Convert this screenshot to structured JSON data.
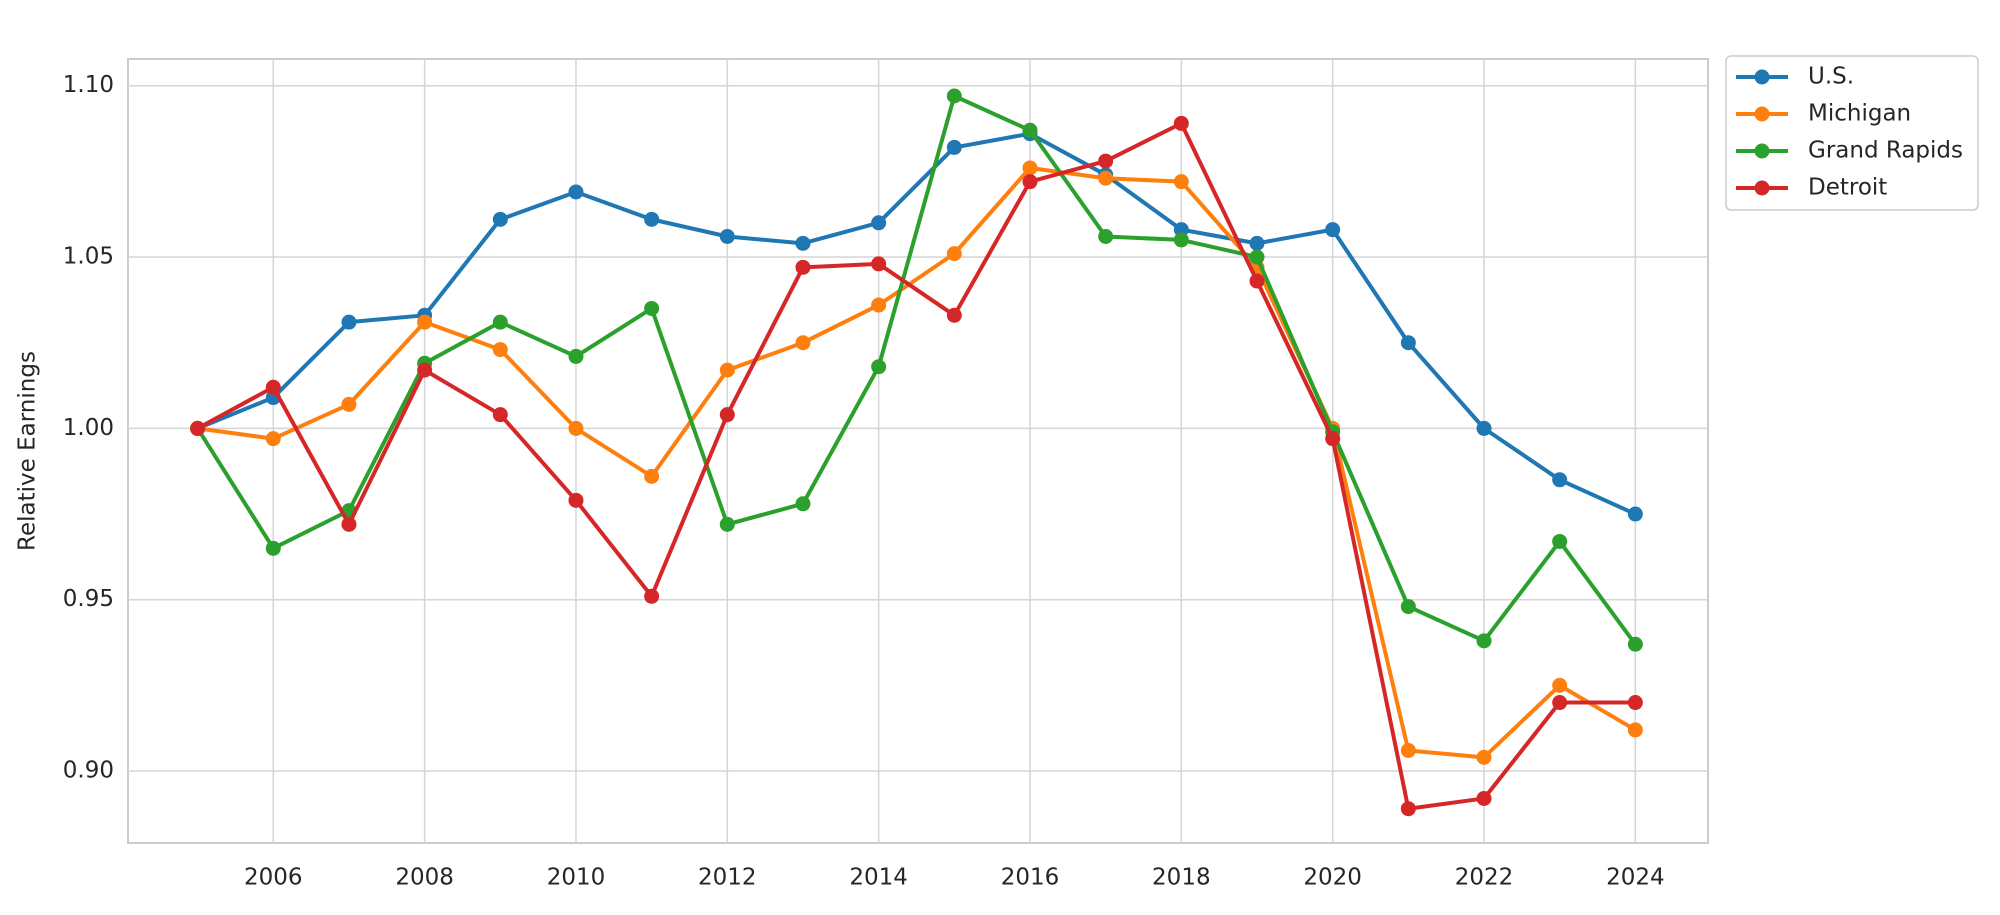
{
  "chart_data": {
    "type": "line",
    "y_label": "Relative Earnings",
    "x": [
      2005,
      2006,
      2007,
      2008,
      2009,
      2010,
      2011,
      2012,
      2013,
      2014,
      2015,
      2016,
      2017,
      2018,
      2019,
      2020,
      2021,
      2022,
      2023,
      2024
    ],
    "series": [
      {
        "name": "U.S.",
        "color": "#1f77b4",
        "values": [
          1.0,
          1.009,
          1.031,
          1.033,
          1.061,
          1.069,
          1.061,
          1.056,
          1.054,
          1.06,
          1.082,
          1.086,
          1.074,
          1.058,
          1.054,
          1.058,
          1.025,
          1.0,
          0.985,
          0.975
        ]
      },
      {
        "name": "Michigan",
        "color": "#ff7f0e",
        "values": [
          1.0,
          0.997,
          1.007,
          1.031,
          1.023,
          1.0,
          0.986,
          1.017,
          1.025,
          1.036,
          1.051,
          1.076,
          1.073,
          1.072,
          1.047,
          1.0,
          0.906,
          0.904,
          0.925,
          0.912
        ]
      },
      {
        "name": "Grand Rapids",
        "color": "#2ca02c",
        "values": [
          1.0,
          0.965,
          0.976,
          1.019,
          1.031,
          1.021,
          1.035,
          0.972,
          0.978,
          1.018,
          1.097,
          1.087,
          1.056,
          1.055,
          1.05,
          0.999,
          0.948,
          0.938,
          0.967,
          0.937
        ]
      },
      {
        "name": "Detroit",
        "color": "#d62728",
        "values": [
          1.0,
          1.012,
          0.972,
          1.017,
          1.004,
          0.979,
          0.951,
          1.004,
          1.047,
          1.048,
          1.033,
          1.072,
          1.078,
          1.089,
          1.043,
          0.997,
          0.889,
          0.892,
          0.92,
          0.92
        ]
      }
    ],
    "xlim": [
      2004.08,
      2024.96
    ],
    "xticks": [
      2006,
      2008,
      2010,
      2012,
      2014,
      2016,
      2018,
      2020,
      2022,
      2024
    ],
    "ylim": [
      0.879,
      1.1078
    ],
    "yticks": [
      {
        "value": 0.9,
        "label": "0.90"
      },
      0.95,
      {
        "value": 1.0,
        "label": "1.00"
      },
      1.05,
      {
        "value": 1.1,
        "label": "1.10"
      }
    ],
    "grid": true,
    "legend": "outside-upper-right"
  }
}
